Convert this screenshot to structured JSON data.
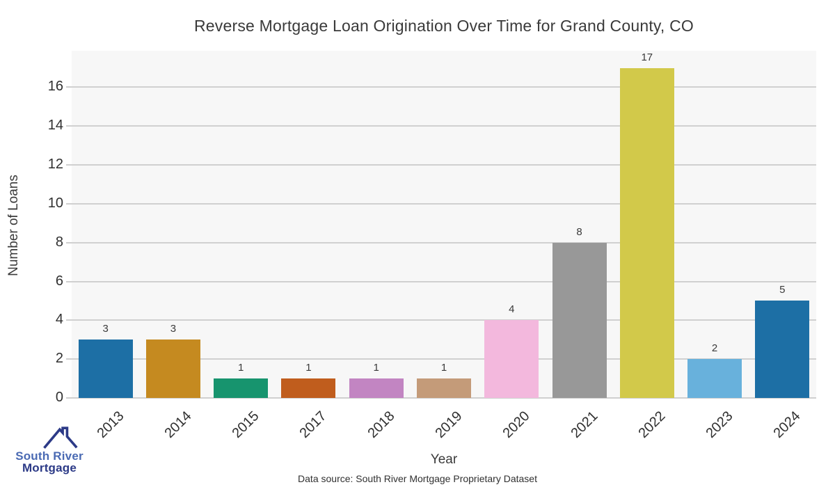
{
  "title": "Reverse Mortgage Loan Origination Over Time for Grand County, CO",
  "chart_data": {
    "type": "bar",
    "title": "Reverse Mortgage Loan Origination Over Time for Grand County, CO",
    "categories": [
      "2013",
      "2014",
      "2015",
      "2017",
      "2018",
      "2019",
      "2020",
      "2021",
      "2022",
      "2023",
      "2024"
    ],
    "values": [
      3,
      3,
      1,
      1,
      1,
      1,
      4,
      8,
      17,
      2,
      5
    ],
    "bar_colors": [
      "#1d6fa5",
      "#c58a20",
      "#17946e",
      "#c05d1d",
      "#c285c2",
      "#c49b79",
      "#f3b8dd",
      "#989898",
      "#d2c94a",
      "#68b1dc",
      "#1d6fa5"
    ],
    "xlabel": "Year",
    "ylabel": "Number of Loans",
    "ylim": [
      0,
      17.88
    ],
    "yticks": [
      0,
      2,
      4,
      6,
      8,
      10,
      12,
      14,
      16
    ],
    "grid": true,
    "legend": "none",
    "plot_background": "#f7f7f7",
    "gridline_color": "#d0d0d0"
  },
  "footer": {
    "data_source": "Data source: South River Mortgage Proprietary Dataset"
  },
  "logo": {
    "line1": "South River",
    "line2": "Mortgage",
    "line1_color": "#4a6ab3",
    "line2_color": "#2c3a87",
    "icon_color": "#2c3a87"
  }
}
